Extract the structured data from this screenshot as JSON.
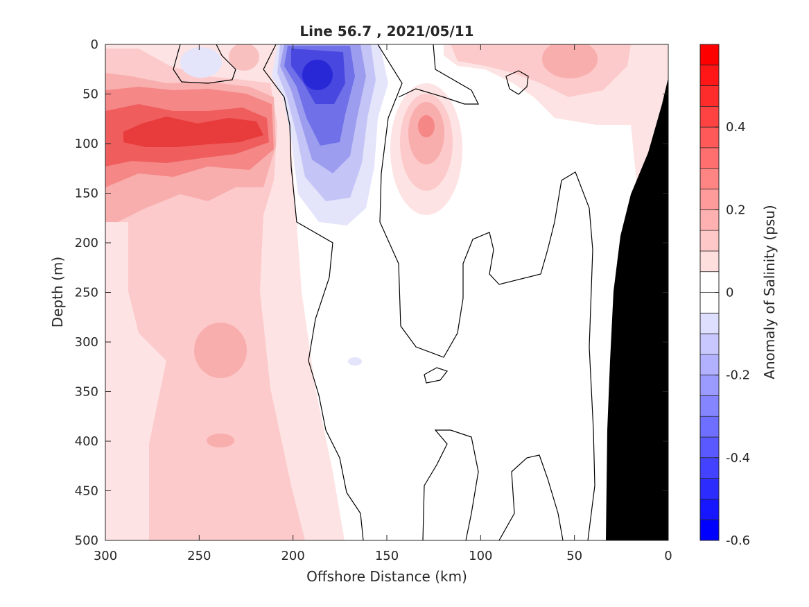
{
  "chart_data": {
    "type": "heatmap",
    "title": "Line 56.7 , 2021/05/11",
    "xlabel": "Offshore Distance (km)",
    "ylabel": "Depth (m)",
    "xlim": [
      300,
      0
    ],
    "ylim": [
      0,
      500
    ],
    "x_reversed": true,
    "y_reversed": true,
    "x_ticks": [
      300,
      250,
      200,
      150,
      100,
      50,
      0
    ],
    "y_ticks": [
      0,
      50,
      100,
      150,
      200,
      250,
      300,
      350,
      400,
      450,
      500
    ],
    "colorbar": {
      "label": "Anomaly of Salinity (psu)",
      "clim": [
        -0.6,
        0.6
      ],
      "ticks": [
        0.4,
        0.2,
        0,
        -0.2,
        -0.4,
        -0.6
      ],
      "levels": [
        -0.6,
        -0.55,
        -0.5,
        -0.45,
        -0.4,
        -0.35,
        -0.3,
        -0.25,
        -0.2,
        -0.15,
        -0.1,
        -0.05,
        0,
        0.05,
        0.1,
        0.15,
        0.2,
        0.25,
        0.3,
        0.35,
        0.4,
        0.45,
        0.5,
        0.55,
        0.6
      ],
      "colormap": "blue-white-red"
    },
    "features": [
      {
        "kind": "positive_anomaly",
        "x_center": 250,
        "depth_center": 95,
        "peak": 0.4
      },
      {
        "kind": "positive_anomaly",
        "x_center": 125,
        "depth_center": 85,
        "peak": 0.25
      },
      {
        "kind": "positive_anomaly",
        "x_center": 55,
        "depth_center": 15,
        "peak": 0.2
      },
      {
        "kind": "negative_anomaly",
        "x_center": 185,
        "depth_center": 35,
        "peak": -0.5
      },
      {
        "kind": "negative_anomaly",
        "x_center": 255,
        "depth_center": 25,
        "peak": -0.1
      }
    ],
    "bathymetry_fill": "#000000"
  }
}
